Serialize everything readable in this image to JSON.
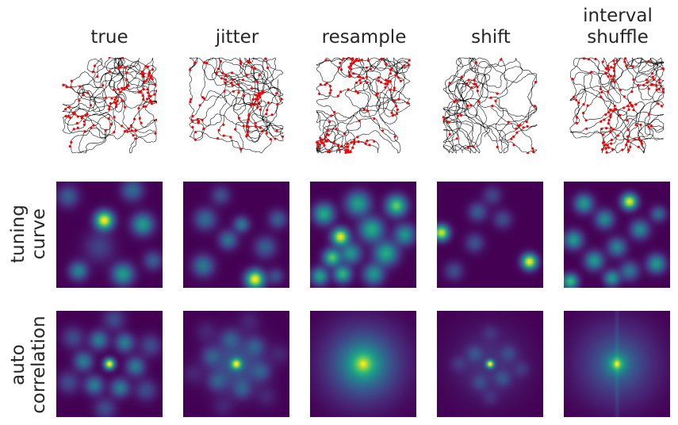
{
  "chart_data": {
    "type": "figure-grid",
    "columns": [
      {
        "title_lines": [
          "true"
        ]
      },
      {
        "title_lines": [
          "jitter"
        ]
      },
      {
        "title_lines": [
          "resample"
        ]
      },
      {
        "title_lines": [
          "shift"
        ]
      },
      {
        "title_lines": [
          "interval",
          "shuffle"
        ]
      }
    ],
    "rows": [
      {
        "kind": "trajectory",
        "label_lines": []
      },
      {
        "kind": "tuning-curve",
        "label_lines": [
          "tuning",
          "curve"
        ]
      },
      {
        "kind": "autocorrelation",
        "label_lines": [
          "auto",
          "correlation"
        ]
      }
    ],
    "colormap": "viridis",
    "trajectory_color": "#000000",
    "spike_color": "#ff0000",
    "axes_visible": false,
    "grid": false
  }
}
